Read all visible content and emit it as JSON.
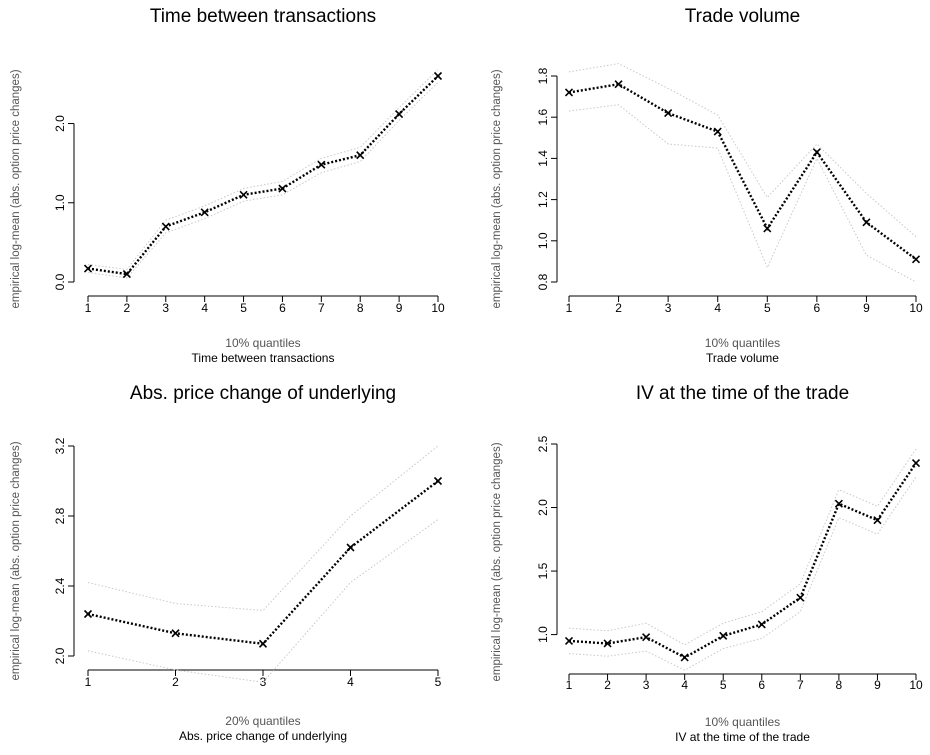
{
  "chart_data": [
    {
      "type": "line",
      "title": "Time between transactions",
      "ylabel": "empirical log-mean (abs. option price changes)",
      "quantile_label": "10% quantiles",
      "xlabel": "Time between transactions",
      "x": [
        1,
        2,
        3,
        4,
        5,
        6,
        7,
        8,
        9,
        10
      ],
      "y_ticks": [
        0.0,
        1.0,
        2.0
      ],
      "y_tick_labels": [
        "0.0",
        "1.0",
        "2.0"
      ],
      "ylim": [
        0.0,
        2.6
      ],
      "series": [
        {
          "role": "mean",
          "marker": "x",
          "values": [
            0.17,
            0.1,
            0.7,
            0.88,
            1.1,
            1.18,
            1.48,
            1.6,
            2.12,
            2.6
          ]
        },
        {
          "role": "upper",
          "values": [
            0.22,
            0.16,
            0.78,
            0.96,
            1.18,
            1.27,
            1.56,
            1.7,
            2.2,
            2.68
          ]
        },
        {
          "role": "lower",
          "values": [
            0.12,
            0.05,
            0.62,
            0.8,
            1.02,
            1.1,
            1.38,
            1.52,
            2.04,
            2.52
          ]
        }
      ]
    },
    {
      "type": "line",
      "title": "Trade volume",
      "ylabel": "empirical log-mean (abs. option price changes)",
      "quantile_label": "10% quantiles",
      "xlabel": "Trade volume",
      "x": [
        1,
        2,
        3,
        4,
        5,
        6,
        7,
        8
      ],
      "x_tick_labels": [
        "1",
        "2",
        "3",
        "4",
        "5",
        "6",
        "9",
        "10"
      ],
      "y_ticks": [
        0.8,
        1.0,
        1.2,
        1.4,
        1.6,
        1.8
      ],
      "y_tick_labels": [
        "0.8",
        "1.0",
        "1.2",
        "1.4",
        "1.6",
        "1.8"
      ],
      "ylim": [
        0.8,
        1.8
      ],
      "series": [
        {
          "role": "mean",
          "marker": "x",
          "values": [
            1.72,
            1.76,
            1.62,
            1.53,
            1.06,
            1.43,
            1.09,
            0.91
          ]
        },
        {
          "role": "upper",
          "values": [
            1.82,
            1.86,
            1.74,
            1.61,
            1.21,
            1.47,
            1.23,
            1.02
          ]
        },
        {
          "role": "lower",
          "values": [
            1.63,
            1.66,
            1.47,
            1.45,
            0.87,
            1.4,
            0.93,
            0.8
          ]
        }
      ]
    },
    {
      "type": "line",
      "title": "Abs. price change of underlying",
      "ylabel": "empirical log-mean (abs. option price changes)",
      "quantile_label": "20% quantiles",
      "xlabel": "Abs. price change of underlying",
      "x": [
        1,
        2,
        3,
        4,
        5
      ],
      "y_ticks": [
        2.0,
        2.4,
        2.8,
        3.2
      ],
      "y_tick_labels": [
        "2.0",
        "2.4",
        "2.8",
        "3.2"
      ],
      "ylim": [
        2.0,
        3.2
      ],
      "series": [
        {
          "role": "mean",
          "marker": "x",
          "values": [
            2.24,
            2.13,
            2.07,
            2.62,
            3.0
          ]
        },
        {
          "role": "upper",
          "values": [
            2.42,
            2.3,
            2.26,
            2.8,
            3.2
          ]
        },
        {
          "role": "lower",
          "values": [
            2.03,
            1.92,
            1.85,
            2.42,
            2.78
          ]
        }
      ]
    },
    {
      "type": "line",
      "title": "IV at the time of the trade",
      "ylabel": "empirical log-mean (abs. option price changes)",
      "quantile_label": "10% quantiles",
      "xlabel": "IV at the time of the trade",
      "x": [
        1,
        2,
        3,
        4,
        5,
        6,
        7,
        8,
        9,
        10
      ],
      "y_ticks": [
        1.0,
        1.5,
        2.0,
        2.5
      ],
      "y_tick_labels": [
        "1.0",
        "1.5",
        "2.0",
        "2.5"
      ],
      "ylim": [
        0.8,
        2.5
      ],
      "series": [
        {
          "role": "mean",
          "marker": "x",
          "values": [
            0.95,
            0.93,
            0.98,
            0.82,
            0.99,
            1.08,
            1.29,
            2.03,
            1.9,
            2.35
          ]
        },
        {
          "role": "upper",
          "values": [
            1.05,
            1.03,
            1.09,
            0.92,
            1.09,
            1.18,
            1.4,
            2.14,
            2.01,
            2.46
          ]
        },
        {
          "role": "lower",
          "values": [
            0.85,
            0.83,
            0.87,
            0.72,
            0.89,
            0.97,
            1.18,
            1.92,
            1.79,
            2.24
          ]
        }
      ]
    }
  ],
  "colors": {
    "mean_line": "#000000",
    "band_line": "#c8c8c8",
    "axis": "#000000",
    "label_gray": "#555555"
  }
}
